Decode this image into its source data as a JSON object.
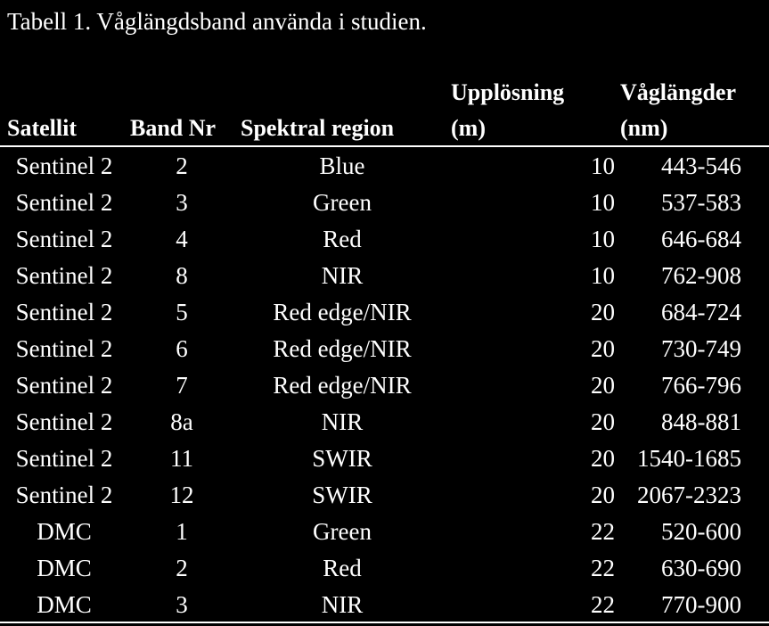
{
  "caption": "Tabell 1. Våglängdsband använda i studien.",
  "columns": {
    "satellite": [
      "Satellit"
    ],
    "band": [
      "Band Nr"
    ],
    "spectral": [
      "Spektral region"
    ],
    "resolution": [
      "Upplösning",
      "(m)"
    ],
    "wavelength": [
      "Våglängder",
      "(nm)"
    ]
  },
  "rows": [
    {
      "satellite": "Sentinel 2",
      "band": "2",
      "spectral": "Blue",
      "resolution": "10",
      "wavelength": "443-546"
    },
    {
      "satellite": "Sentinel 2",
      "band": "3",
      "spectral": "Green",
      "resolution": "10",
      "wavelength": "537-583"
    },
    {
      "satellite": "Sentinel 2",
      "band": "4",
      "spectral": "Red",
      "resolution": "10",
      "wavelength": "646-684"
    },
    {
      "satellite": "Sentinel 2",
      "band": "8",
      "spectral": "NIR",
      "resolution": "10",
      "wavelength": "762-908"
    },
    {
      "satellite": "Sentinel 2",
      "band": "5",
      "spectral": "Red edge/NIR",
      "resolution": "20",
      "wavelength": "684-724"
    },
    {
      "satellite": "Sentinel 2",
      "band": "6",
      "spectral": "Red edge/NIR",
      "resolution": "20",
      "wavelength": "730-749"
    },
    {
      "satellite": "Sentinel 2",
      "band": "7",
      "spectral": "Red edge/NIR",
      "resolution": "20",
      "wavelength": "766-796"
    },
    {
      "satellite": "Sentinel 2",
      "band": "8a",
      "spectral": "NIR",
      "resolution": "20",
      "wavelength": "848-881"
    },
    {
      "satellite": "Sentinel 2",
      "band": "11",
      "spectral": "SWIR",
      "resolution": "20",
      "wavelength": "1540-1685"
    },
    {
      "satellite": "Sentinel 2",
      "band": "12",
      "spectral": "SWIR",
      "resolution": "20",
      "wavelength": "2067-2323"
    },
    {
      "satellite": "DMC",
      "band": "1",
      "spectral": "Green",
      "resolution": "22",
      "wavelength": "520-600"
    },
    {
      "satellite": "DMC",
      "band": "2",
      "spectral": "Red",
      "resolution": "22",
      "wavelength": "630-690"
    },
    {
      "satellite": "DMC",
      "band": "3",
      "spectral": "NIR",
      "resolution": "22",
      "wavelength": "770-900"
    }
  ],
  "colors": {
    "background": "#000000",
    "text": "#ffffff"
  }
}
